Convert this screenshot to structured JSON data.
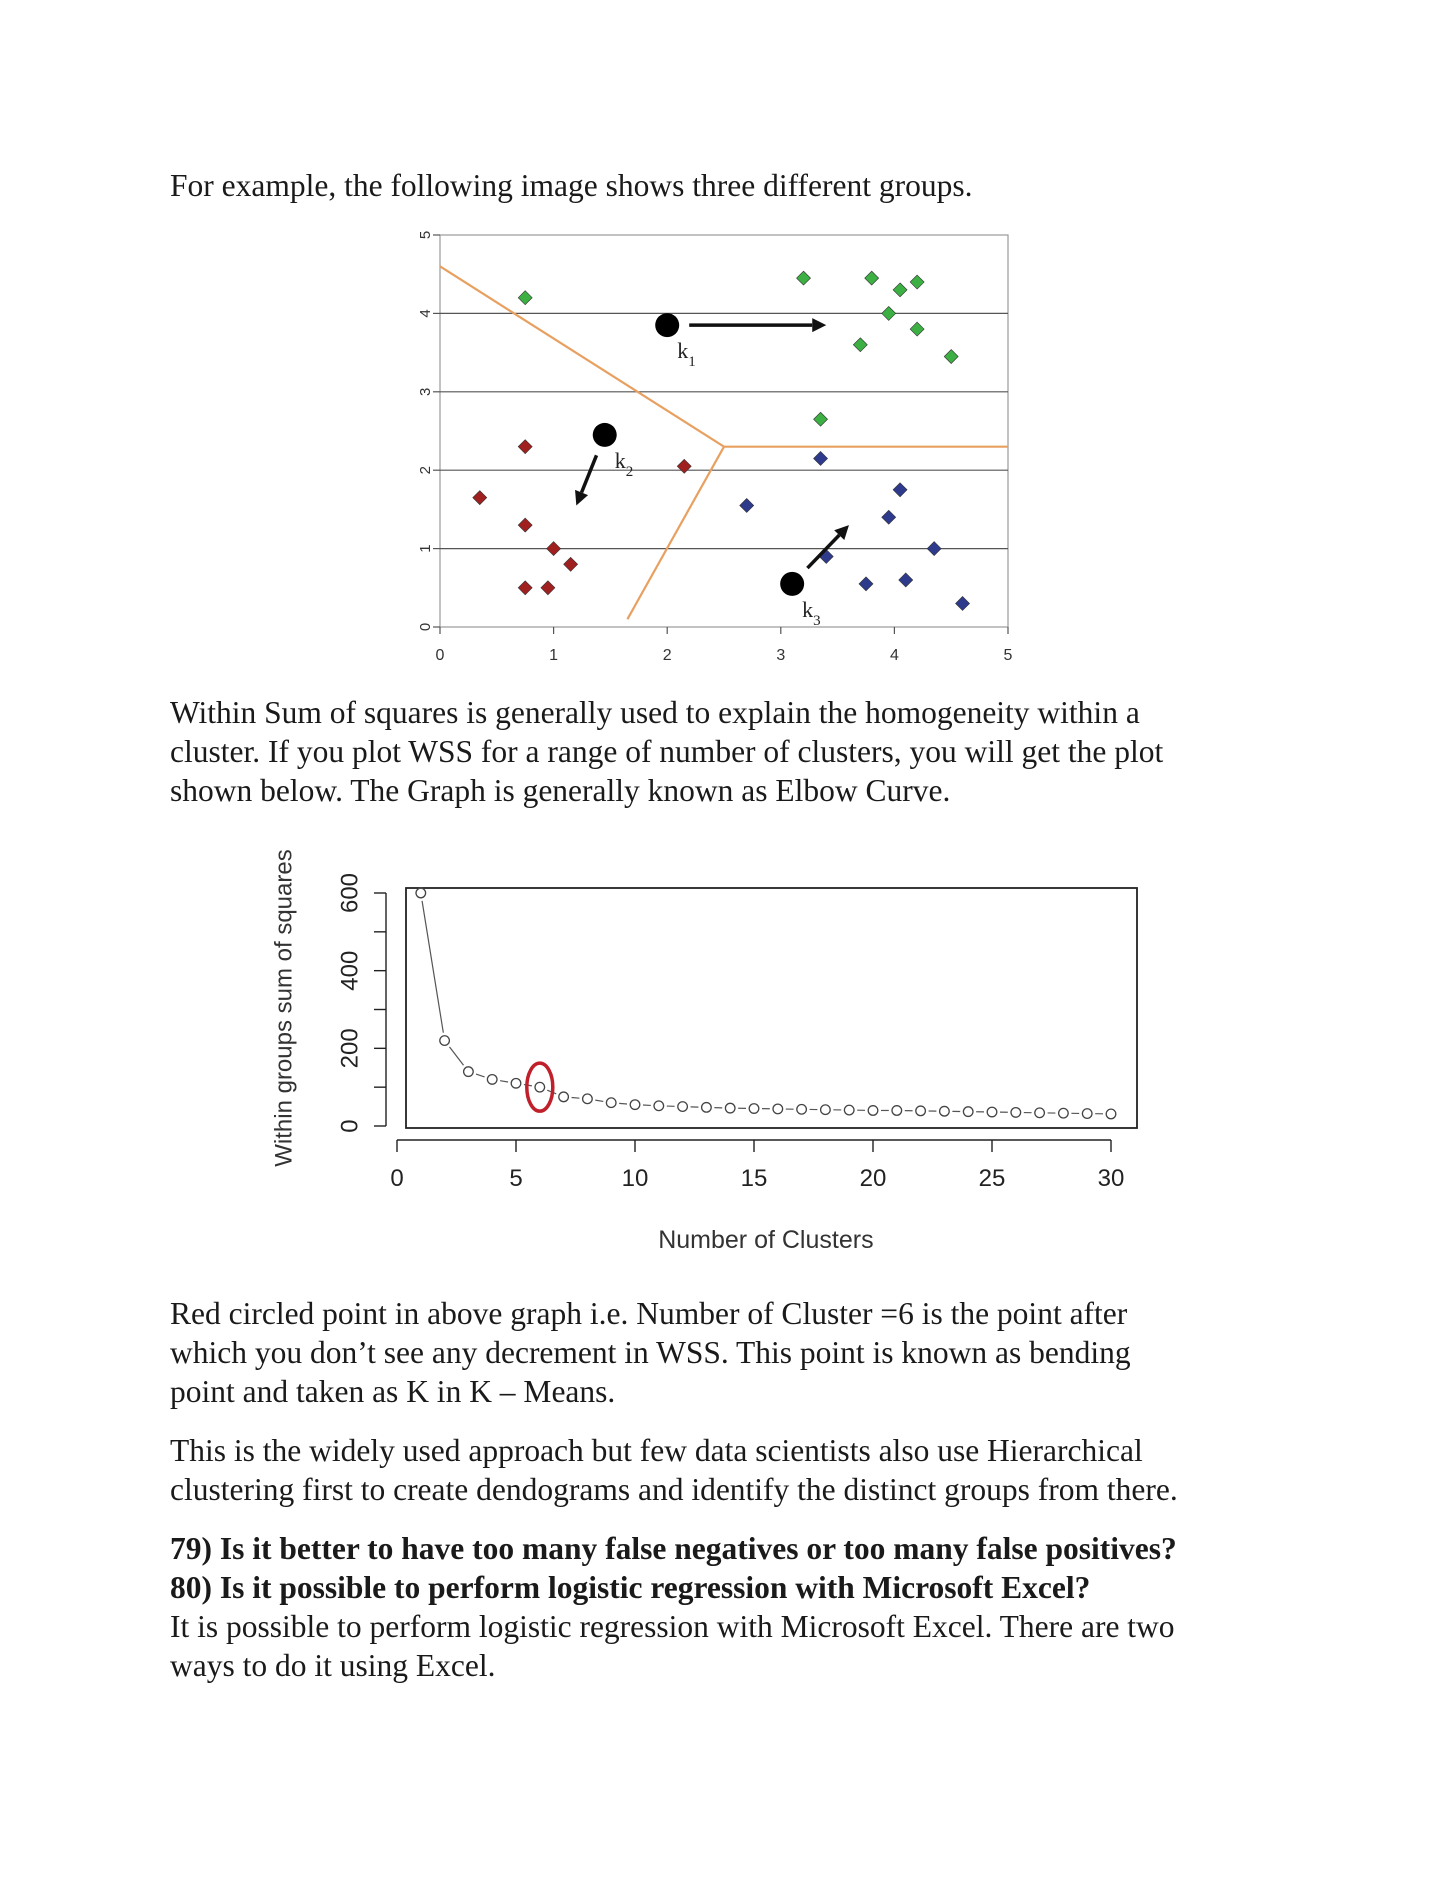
{
  "paragraphs": {
    "intro": "For example, the following image shows three different groups.",
    "wss_line1": "Within Sum of squares is generally used to explain the homogeneity within a",
    "wss_line2": "cluster. If you plot WSS for a range of number of clusters, you will get the plot",
    "wss_line3": "shown below. The Graph is generally known as Elbow Curve.",
    "red_line1": "Red circled point in above graph i.e. Number of Cluster =6 is the point after",
    "red_line2": "which you don’t see any decrement in WSS. This point is known as bending",
    "red_line3": "point and taken as K in K – Means.",
    "hier_line1": "This is the widely used approach but few data scientists also use Hierarchical",
    "hier_line2": "clustering first to create dendograms and identify the distinct groups from there.",
    "q79": "79) Is it better to have too many false negatives or too many false positives?",
    "q80": "80) Is it possible to perform logistic regression with Microsoft Excel?",
    "ans_line1": "It is possible to perform logistic regression with Microsoft Excel. There are two",
    "ans_line2": "ways to do it using Excel."
  },
  "chart_data": [
    {
      "type": "scatter",
      "title": "",
      "xlabel": "",
      "ylabel": "",
      "xlim": [
        0,
        5
      ],
      "ylim": [
        0,
        5
      ],
      "x_ticks": [
        "0",
        "1",
        "2",
        "3",
        "4",
        "5"
      ],
      "y_ticks": [
        "0",
        "1",
        "2",
        "3",
        "4",
        "5"
      ],
      "grid": "horizontal",
      "series": [
        {
          "color": "#3cb043",
          "marker": "diamond",
          "points": [
            [
              0.75,
              4.2
            ],
            [
              3.2,
              4.45
            ],
            [
              3.8,
              4.45
            ],
            [
              4.05,
              4.3
            ],
            [
              4.2,
              4.4
            ],
            [
              3.95,
              4.0
            ],
            [
              4.2,
              3.8
            ],
            [
              3.7,
              3.6
            ],
            [
              4.5,
              3.45
            ],
            [
              3.35,
              2.65
            ]
          ]
        },
        {
          "color": "#a02020",
          "marker": "diamond",
          "points": [
            [
              0.75,
              2.3
            ],
            [
              0.35,
              1.65
            ],
            [
              0.75,
              1.3
            ],
            [
              1.0,
              1.0
            ],
            [
              1.15,
              0.8
            ],
            [
              0.75,
              0.5
            ],
            [
              0.95,
              0.5
            ],
            [
              2.15,
              2.05
            ]
          ]
        },
        {
          "color": "#2e3a8c",
          "marker": "diamond",
          "points": [
            [
              3.35,
              2.15
            ],
            [
              2.7,
              1.55
            ],
            [
              4.05,
              1.75
            ],
            [
              3.95,
              1.4
            ],
            [
              4.35,
              1.0
            ],
            [
              3.4,
              0.9
            ],
            [
              3.75,
              0.55
            ],
            [
              4.1,
              0.6
            ],
            [
              4.6,
              0.3
            ]
          ]
        }
      ],
      "centroids": [
        {
          "label": "k",
          "subscript": "1",
          "x": 2.0,
          "y": 3.85,
          "arrow_to": [
            3.4,
            3.85
          ]
        },
        {
          "label": "k",
          "subscript": "2",
          "x": 1.45,
          "y": 2.45,
          "arrow_to": [
            1.2,
            1.55
          ]
        },
        {
          "label": "k",
          "subscript": "3",
          "x": 3.1,
          "y": 0.55,
          "arrow_to": [
            3.6,
            1.3
          ]
        }
      ],
      "boundaries": [
        [
          [
            0,
            4.6
          ],
          [
            2.5,
            2.3
          ],
          [
            5,
            2.3
          ]
        ],
        [
          [
            2.5,
            2.3
          ],
          [
            1.65,
            0.1
          ]
        ]
      ]
    },
    {
      "type": "line",
      "title": "",
      "xlabel": "Number of Clusters",
      "ylabel": "Within groups sum of squares",
      "xlim": [
        0,
        31
      ],
      "ylim": [
        0,
        650
      ],
      "x_ticks": [
        "0",
        "5",
        "10",
        "15",
        "20",
        "25",
        "30"
      ],
      "y_ticks": [
        "0",
        "200",
        "400",
        "600"
      ],
      "x": [
        1,
        2,
        3,
        4,
        5,
        6,
        7,
        8,
        9,
        10,
        11,
        12,
        13,
        14,
        15,
        16,
        17,
        18,
        19,
        20,
        21,
        22,
        23,
        24,
        25,
        26,
        27,
        28,
        29,
        30
      ],
      "values": [
        600,
        220,
        140,
        120,
        110,
        100,
        75,
        70,
        60,
        55,
        52,
        50,
        48,
        46,
        45,
        44,
        43,
        42,
        41,
        40,
        40,
        39,
        38,
        37,
        36,
        35,
        34,
        33,
        32,
        31
      ],
      "highlight": {
        "x": 6,
        "color": "#c0202a"
      }
    }
  ]
}
